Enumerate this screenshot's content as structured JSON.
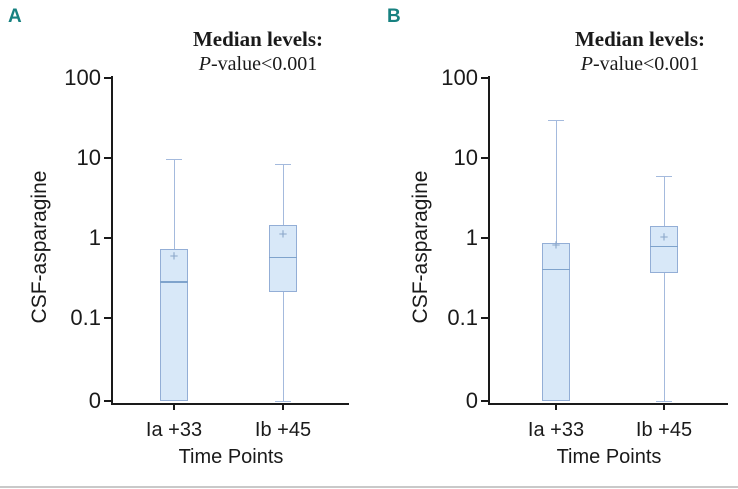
{
  "colors": {
    "panel_letter": "#178180",
    "axis": "#1a1a1a",
    "box_fill": "#d8e8f8",
    "box_border": "#93aed6",
    "median_line": "#7fa3cc",
    "whisker": "#a4badd",
    "mean_marker": "#8aa6c9",
    "bottom_border": "#c9c9c9"
  },
  "chart_data": [
    {
      "type": "box",
      "panel": "A",
      "title": "Median levels:",
      "subtitle_prefix": "P",
      "subtitle_rest": "-value<0.001",
      "ylabel": "CSF-asparagine",
      "xlabel": "Time Points",
      "yscale": "log",
      "ylim": [
        0,
        100
      ],
      "yticks": [
        100,
        10,
        1,
        0.1,
        0
      ],
      "grid": false,
      "legend": false,
      "categories": [
        "Ia +33",
        "Ib +45"
      ],
      "boxes": [
        {
          "category": "Ia +33",
          "whisker_low": null,
          "q1": 0,
          "median": 0.29,
          "q3": 0.73,
          "mean": 0.58,
          "whisker_high": 9.7
        },
        {
          "category": "Ib +45",
          "whisker_low": 0,
          "q1": 0.21,
          "median": 0.58,
          "q3": 1.45,
          "mean": 1.1,
          "whisker_high": 8.5
        }
      ]
    },
    {
      "type": "box",
      "panel": "B",
      "title": "Median levels:",
      "subtitle_prefix": "P",
      "subtitle_rest": "-value<0.001",
      "ylabel": "CSF-asparagine",
      "xlabel": "Time Points",
      "yscale": "log",
      "ylim": [
        0,
        100
      ],
      "yticks": [
        100,
        10,
        1,
        0.1,
        0
      ],
      "grid": false,
      "legend": false,
      "categories": [
        "Ia +33",
        "Ib +45"
      ],
      "boxes": [
        {
          "category": "Ia +33",
          "whisker_low": null,
          "q1": 0,
          "median": 0.41,
          "q3": 0.87,
          "mean": 0.8,
          "whisker_high": 30
        },
        {
          "category": "Ib +45",
          "whisker_low": 0,
          "q1": 0.36,
          "median": 0.8,
          "q3": 1.4,
          "mean": 1.0,
          "whisker_high": 6
        }
      ]
    }
  ]
}
